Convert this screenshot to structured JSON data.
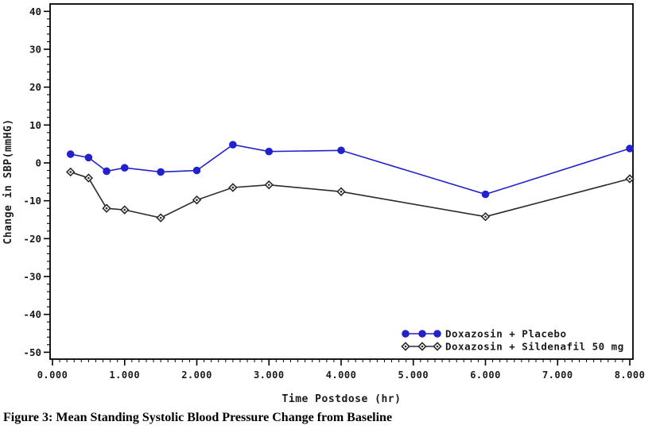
{
  "figure_caption": "Figure 3: Mean Standing Systolic Blood Pressure Change from Baseline",
  "chart_data": {
    "type": "line",
    "title": "",
    "xlabel": "Time Postdose (hr)",
    "ylabel": "Change in SBP(mmHG)",
    "xlim": [
      0,
      8
    ],
    "ylim": [
      -50,
      40
    ],
    "x_major_ticks": [
      0,
      1,
      2,
      3,
      4,
      5,
      6,
      7,
      8
    ],
    "x_tick_labels": [
      "0.000",
      "1.000",
      "2.000",
      "3.000",
      "4.000",
      "5.000",
      "6.000",
      "7.000",
      "8.000"
    ],
    "x_minor_step": 0.1,
    "y_major_ticks": [
      40,
      30,
      20,
      10,
      0,
      -10,
      -20,
      -30,
      -40,
      -50
    ],
    "y_minor_step": 2,
    "grid": false,
    "legend_position": "inside bottom-right",
    "axis_color": "#000000",
    "x": [
      0.25,
      0.5,
      0.75,
      1.0,
      1.5,
      2.0,
      2.5,
      3.0,
      4.0,
      6.0,
      8.0
    ],
    "series": [
      {
        "name": "Doxazosin + Placebo",
        "color": "#2222cc",
        "marker": "circle",
        "values": [
          2.3,
          1.4,
          -2.2,
          -1.3,
          -2.4,
          -2.0,
          4.8,
          3.0,
          3.3,
          -8.3,
          3.8
        ]
      },
      {
        "name": "Doxazosin + Sildenafil 50 mg",
        "color": "#2b2b2b",
        "marker": "diamond",
        "values": [
          -2.4,
          -4.0,
          -12.0,
          -12.4,
          -14.5,
          -9.8,
          -6.5,
          -5.8,
          -7.6,
          -14.2,
          -4.2
        ]
      }
    ]
  }
}
